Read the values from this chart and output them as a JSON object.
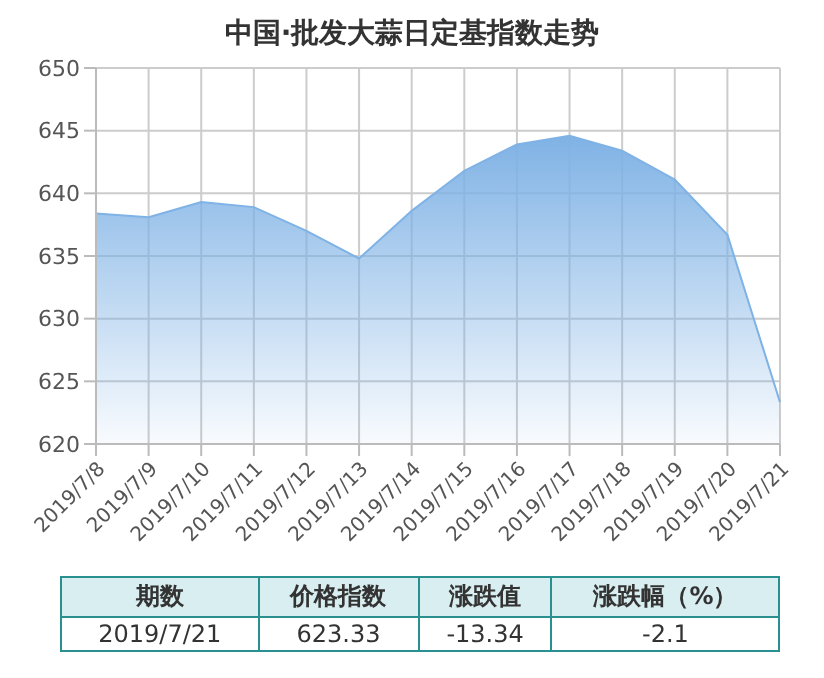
{
  "chart_data": {
    "type": "area",
    "title": "中国·批发大蒜日定基指数走势",
    "categories": [
      "2019/7/8",
      "2019/7/9",
      "2019/7/10",
      "2019/7/11",
      "2019/7/12",
      "2019/7/13",
      "2019/7/14",
      "2019/7/15",
      "2019/7/16",
      "2019/7/17",
      "2019/7/18",
      "2019/7/19",
      "2019/7/20",
      "2019/7/21"
    ],
    "series": [
      {
        "color": "#7fb2e5",
        "values": [
          638.4,
          638.1,
          639.3,
          638.9,
          637.0,
          634.8,
          638.6,
          641.8,
          643.9,
          644.6,
          643.4,
          641.1,
          636.7,
          623.33
        ]
      }
    ],
    "ylim": [
      620,
      650
    ],
    "yticks": [
      620,
      625,
      630,
      635,
      640,
      645,
      650
    ],
    "grid": true,
    "annotations": [
      "期数",
      "价格指数",
      "涨跌值",
      "涨跌幅（%）",
      "2019/7/21",
      "623.33",
      "-13.34",
      "-2.1"
    ]
  }
}
